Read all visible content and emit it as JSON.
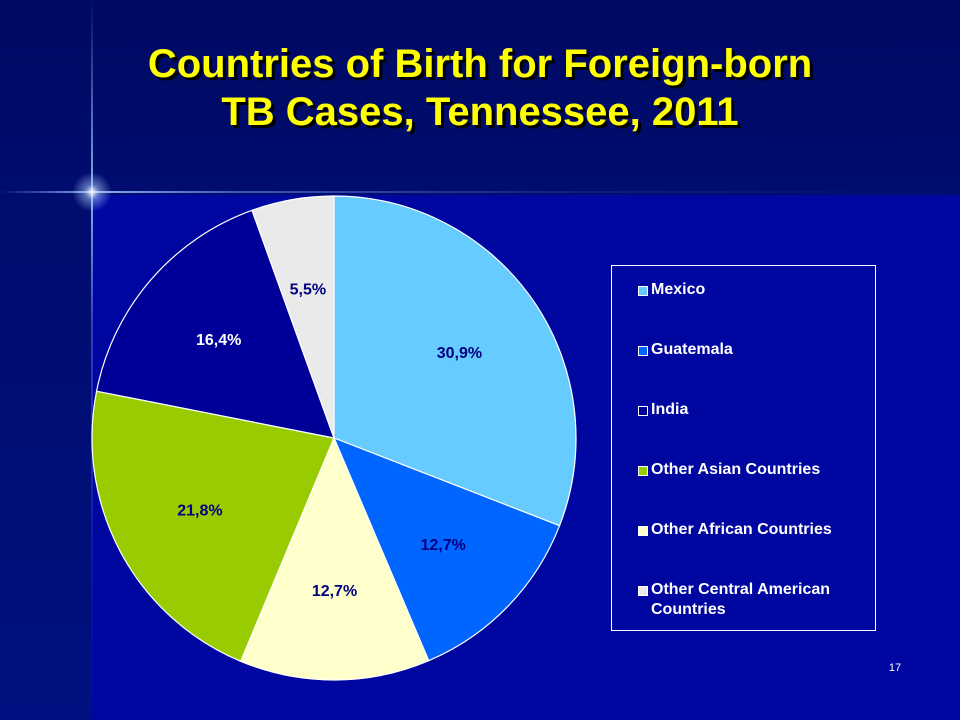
{
  "title_lines": [
    "Countries of Birth for Foreign-born",
    "TB Cases, Tennessee, 2011"
  ],
  "slide_number": "17",
  "chart_data": {
    "type": "pie",
    "title": "Countries of Birth for Foreign-born TB Cases, Tennessee, 2011",
    "start_angle_deg": 0,
    "direction": "clockwise",
    "legend_placement": "right",
    "slices": [
      {
        "name": "Mexico",
        "value": 30.9,
        "label": "30,9%",
        "color": "#66ccff"
      },
      {
        "name": "Guatemala",
        "value": 12.7,
        "label": "12,7%",
        "color": "#0066ff"
      },
      {
        "name": "Other African Countries",
        "value": 12.7,
        "label": "12,7%",
        "color": "#ffffcc"
      },
      {
        "name": "Other Asian Countries",
        "value": 21.8,
        "label": "21,8%",
        "color": "#99cc00"
      },
      {
        "name": "India",
        "value": 16.4,
        "label": "16,4%",
        "color": "#000099"
      },
      {
        "name": "Other Central American Countries",
        "value": 5.5,
        "label": "5,5%",
        "color": "#eaeaea"
      }
    ],
    "legend": [
      {
        "label": "Mexico",
        "color": "#66ccff"
      },
      {
        "label": "Guatemala",
        "color": "#0066ff"
      },
      {
        "label": "India",
        "color": "#000099"
      },
      {
        "label": "Other Asian Countries",
        "color": "#99cc00"
      },
      {
        "label": "Other African Countries",
        "color": "#ffffcc"
      },
      {
        "label": "Other Central American Countries",
        "color": "#eaeaea"
      }
    ]
  }
}
